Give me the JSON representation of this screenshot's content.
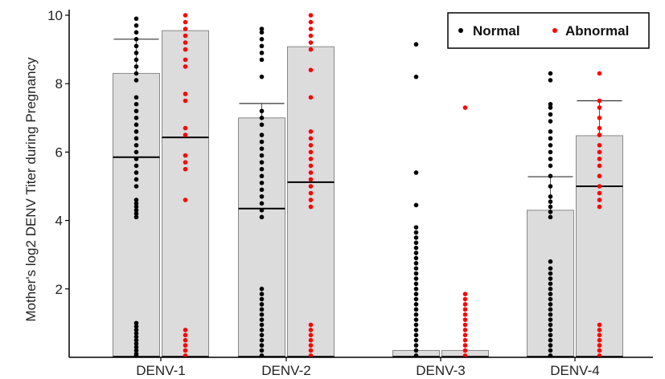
{
  "chart_data": {
    "type": "bar",
    "title": "",
    "xlabel": "",
    "ylabel": "Mother's log2 DENV Titer during Pregnancy",
    "ylim": [
      0,
      10.2
    ],
    "yticks": [
      2,
      4,
      6,
      8,
      10
    ],
    "categories": [
      "DENV-1",
      "DENV-2",
      "DENV-3",
      "DENV-4"
    ],
    "legend": {
      "position": "top-right",
      "items": [
        "Normal",
        "Abnormal"
      ]
    },
    "colors": {
      "Normal": "#000000",
      "Abnormal": "#ff0000",
      "bar_fill": "#dcdcdc",
      "bar_stroke": "#888888"
    },
    "series": [
      {
        "name": "Normal",
        "bar_values": [
          8.3,
          7.0,
          0.2,
          4.3
        ],
        "median": [
          5.85,
          4.35,
          null,
          null
        ],
        "error_upper": [
          9.3,
          7.42,
          null,
          5.28
        ],
        "points": [
          [
            0.05,
            0.1,
            0.2,
            0.3,
            0.4,
            0.5,
            0.6,
            0.7,
            0.8,
            0.9,
            1.0,
            4.1,
            4.2,
            4.3,
            4.4,
            4.5,
            4.6,
            5.0,
            5.2,
            5.4,
            5.6,
            5.8,
            6.0,
            6.2,
            6.4,
            6.6,
            6.8,
            7.0,
            7.2,
            7.4,
            7.6,
            8.1,
            8.3,
            8.5,
            8.7,
            8.9,
            9.1,
            9.3,
            9.5,
            9.7,
            9.9
          ],
          [
            0.05,
            0.2,
            0.35,
            0.5,
            0.65,
            0.8,
            0.95,
            1.1,
            1.25,
            1.4,
            1.55,
            1.7,
            1.85,
            2.0,
            4.1,
            4.3,
            4.5,
            4.7,
            4.9,
            5.1,
            5.3,
            5.5,
            5.7,
            5.9,
            6.1,
            6.3,
            6.5,
            6.8,
            7.0,
            7.2,
            8.2,
            8.7,
            8.9,
            9.1,
            9.3,
            9.5,
            9.6
          ],
          [
            0.05,
            0.2,
            0.35,
            0.5,
            0.65,
            0.8,
            0.95,
            1.1,
            1.25,
            1.4,
            1.55,
            1.7,
            1.85,
            2.0,
            2.15,
            2.3,
            2.45,
            2.6,
            2.75,
            2.9,
            3.05,
            3.2,
            3.35,
            3.5,
            3.65,
            3.8,
            4.45,
            5.4,
            8.2,
            9.15
          ],
          [
            0.05,
            0.2,
            0.35,
            0.5,
            0.65,
            0.8,
            0.95,
            1.1,
            1.25,
            1.4,
            1.55,
            1.7,
            1.85,
            2.0,
            2.15,
            2.3,
            2.45,
            2.6,
            2.8,
            4.1,
            4.25,
            4.4,
            4.55,
            4.7,
            5.0,
            5.3,
            5.6,
            5.8,
            6.0,
            6.2,
            6.4,
            6.6,
            6.9,
            7.1,
            7.3,
            7.4,
            8.1,
            8.3
          ]
        ]
      },
      {
        "name": "Abnormal",
        "bar_values": [
          9.55,
          9.08,
          0.2,
          6.48
        ],
        "median": [
          6.43,
          5.12,
          null,
          5.0
        ],
        "error_upper": [
          null,
          null,
          null,
          7.5
        ],
        "points": [
          [
            0.05,
            0.2,
            0.35,
            0.5,
            0.65,
            0.8,
            4.6,
            5.5,
            5.7,
            5.9,
            6.5,
            6.7,
            7.5,
            7.7,
            8.5,
            8.7,
            9.0,
            9.2,
            9.4,
            9.6,
            9.8,
            10.0
          ],
          [
            0.05,
            0.2,
            0.35,
            0.5,
            0.65,
            0.8,
            0.95,
            4.4,
            4.6,
            4.8,
            5.0,
            5.2,
            5.4,
            5.6,
            5.8,
            6.0,
            6.2,
            6.4,
            6.6,
            7.6,
            8.4,
            9.0,
            9.2,
            9.4,
            9.6,
            9.8,
            10.0
          ],
          [
            0.05,
            0.2,
            0.35,
            0.5,
            0.65,
            0.8,
            0.95,
            1.1,
            1.25,
            1.4,
            1.55,
            1.7,
            1.85,
            7.3
          ],
          [
            0.05,
            0.2,
            0.35,
            0.5,
            0.65,
            0.8,
            0.95,
            4.4,
            4.6,
            4.8,
            5.0,
            5.3,
            5.6,
            5.8,
            6.0,
            6.2,
            6.5,
            6.7,
            7.0,
            7.3,
            7.5,
            8.3
          ]
        ]
      }
    ]
  }
}
